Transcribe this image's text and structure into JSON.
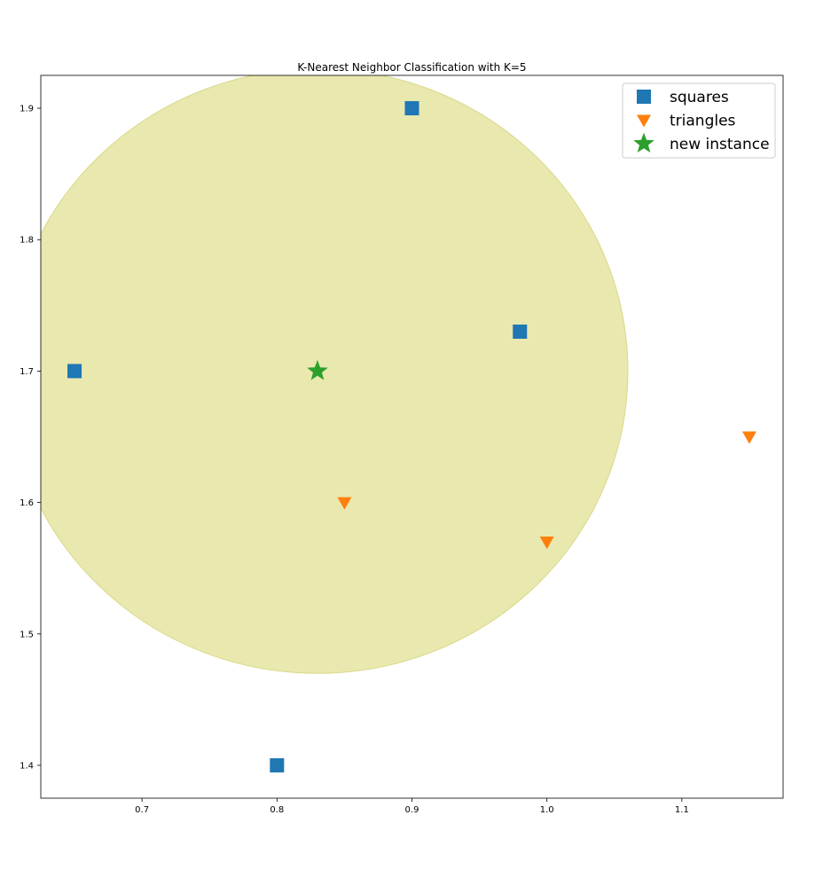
{
  "chart_data": {
    "type": "scatter",
    "title": "K-Nearest Neighbor Classification with K=5",
    "xlabel": "",
    "ylabel": "",
    "xlim": [
      0.625,
      1.175
    ],
    "ylim": [
      1.375,
      1.925
    ],
    "grid": false,
    "legend_position": "top-right",
    "x_ticks": [
      {
        "value": 0.7,
        "label": "0.7"
      },
      {
        "value": 0.8,
        "label": "0.8"
      },
      {
        "value": 0.9,
        "label": "0.9"
      },
      {
        "value": 1.0,
        "label": "1.0"
      },
      {
        "value": 1.1,
        "label": "1.1"
      }
    ],
    "y_ticks": [
      {
        "value": 1.4,
        "label": "1.4"
      },
      {
        "value": 1.5,
        "label": "1.5"
      },
      {
        "value": 1.6,
        "label": "1.6"
      },
      {
        "value": 1.7,
        "label": "1.7"
      },
      {
        "value": 1.8,
        "label": "1.8"
      },
      {
        "value": 1.9,
        "label": "1.9"
      }
    ],
    "neighborhood": {
      "center": [
        0.83,
        1.7
      ],
      "radius": 0.23,
      "color": "#e9e8ae",
      "edge_color": "#d9d98a"
    },
    "series": [
      {
        "name": "squares",
        "marker": "square",
        "color": "#1f77b4",
        "points": [
          {
            "x": 0.65,
            "y": 1.7
          },
          {
            "x": 0.8,
            "y": 1.4
          },
          {
            "x": 0.9,
            "y": 1.9
          },
          {
            "x": 0.98,
            "y": 1.73
          }
        ]
      },
      {
        "name": "triangles",
        "marker": "triangle-down",
        "color": "#ff7f0e",
        "points": [
          {
            "x": 0.85,
            "y": 1.6
          },
          {
            "x": 1.0,
            "y": 1.57
          },
          {
            "x": 1.15,
            "y": 1.65
          }
        ]
      },
      {
        "name": "new instance",
        "marker": "star",
        "color": "#2ca02c",
        "points": [
          {
            "x": 0.83,
            "y": 1.7
          }
        ]
      }
    ]
  }
}
